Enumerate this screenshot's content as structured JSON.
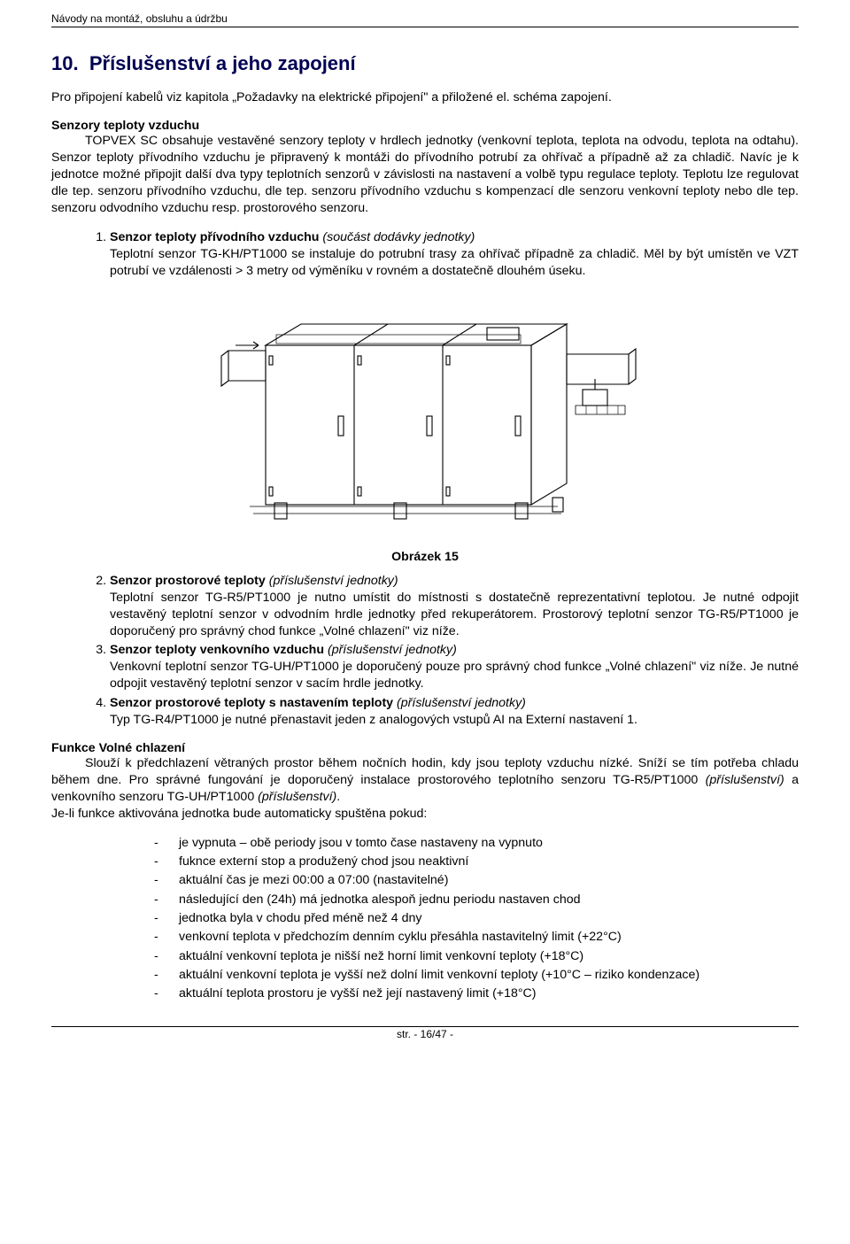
{
  "header": {
    "title": "Návody na montáž, obsluhu a údržbu"
  },
  "section": {
    "number": "10.",
    "title": "Příslušenství a jeho zapojení",
    "intro": "Pro připojení kabelů viz kapitola „Požadavky na elektrické připojení\" a přiložené el. schéma zapojení."
  },
  "sensors": {
    "heading": "Senzory teploty vzduchu",
    "body": "TOPVEX SC obsahuje vestavěné senzory teploty v hrdlech jednotky (venkovní teplota, teplota na odvodu, teplota na odtahu). Senzor teploty přívodního vzduchu je připravený k montáži do přívodního potrubí za ohřívač a případně až za chladič. Navíc je k jednotce možné připojit další dva typy teplotních senzorů v závislosti na nastavení a volbě typu regulace teploty. Teplotu lze regulovat dle tep. senzoru přívodního vzduchu, dle tep. senzoru přívodního vzduchu s kompenzací dle senzoru venkovní teploty nebo dle tep. senzoru odvodního vzduchu resp. prostorového senzoru."
  },
  "numbered": [
    {
      "title": "Senzor teploty přívodního vzduchu",
      "note": "(součást dodávky jednotky)",
      "body": "Teplotní senzor TG-KH/PT1000 se instaluje do potrubní trasy za ohřívač případně za chladič. Měl by být umístěn ve VZT potrubí ve vzdálenosti > 3 metry od výměníku v rovném a dostatečně dlouhém úseku."
    },
    {
      "title": "Senzor prostorové teploty",
      "note": "(příslušenství jednotky)",
      "body": "Teplotní senzor TG-R5/PT1000 je nutno umístit do místnosti s dostatečně reprezentativní teplotou. Je nutné odpojit vestavěný teplotní senzor v odvodním hrdle jednotky před rekuperátorem. Prostorový teplotní senzor TG-R5/PT1000 je doporučený pro správný chod funkce „Volné chlazení\" viz níže."
    },
    {
      "title": "Senzor teploty venkovního vzduchu",
      "note": "(příslušenství jednotky)",
      "body": "Venkovní teplotní senzor TG-UH/PT1000 je doporučený pouze pro správný chod funkce „Volné chlazení\" viz níže. Je nutné odpojit vestavěný teplotní senzor v sacím hrdle jednotky."
    },
    {
      "title": "Senzor prostorové teploty s nastavením teploty",
      "note": "(příslušenství jednotky)",
      "body": "Typ TG-R4/PT1000 je nutné přenastavit jeden z analogových vstupů AI na Externí nastavení 1."
    }
  ],
  "figure": {
    "caption": "Obrázek 15"
  },
  "freecool": {
    "heading": "Funkce Volné chlazení",
    "body_html": "Slouží k předchlazení větraných prostor během nočních hodin, kdy jsou teploty vzduchu nízké. Sníží se tím potřeba chladu během dne. Pro správné fungování je doporučený instalace prostorového teplotního senzoru TG-R5/PT1000 <i>(příslušenství)</i> a venkovního senzoru TG-UH/PT1000 <i>(příslušenství)</i>.",
    "body2": "Je-li funkce aktivována jednotka bude automaticky spuštěna pokud:"
  },
  "conditions": [
    "je vypnuta – obě periody jsou v tomto čase nastaveny na vypnuto",
    "fuknce externí stop a produžený chod jsou neaktivní",
    "aktuální čas je mezi 00:00 a 07:00 (nastavitelné)",
    "následující den (24h) má jednotka alespoň jednu periodu nastaven chod",
    "jednotka byla v chodu před méně než 4 dny",
    "venkovní teplota v předchozím denním cyklu přesáhla nastavitelný limit (+22°C)",
    "aktuální venkovní teplota je nišší než horní limit venkovní teploty (+18°C)",
    "aktuální venkovní teplota je vyšší než dolní limit venkovní teploty (+10°C – riziko kondenzace)",
    "aktuální teplota prostoru je vyšší než její nastavený limit (+18°C)"
  ],
  "footer": {
    "page": "str. - 16/47 -"
  }
}
